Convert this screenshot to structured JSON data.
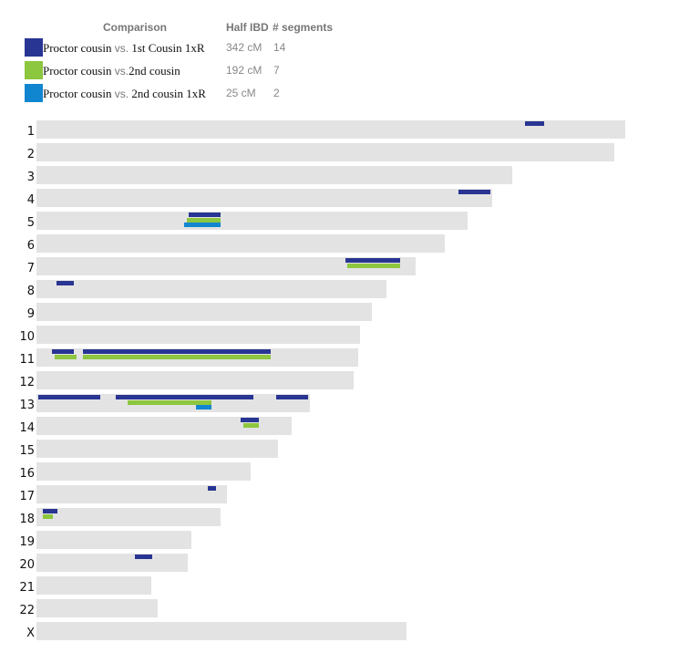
{
  "legend": {
    "headers": {
      "comparison": "Comparison",
      "half_ibd": "Half IBD",
      "segments": "# segments"
    },
    "rows": [
      {
        "name": "Proctor cousin",
        "vs": "vs.",
        "target": "1st Cousin 1xR",
        "half_ibd": "342 cM",
        "segments": "14",
        "color": "#283593"
      },
      {
        "name": "Proctor cousin",
        "vs": "vs.",
        "target": "2nd cousin",
        "half_ibd": "192 cM",
        "segments": "7",
        "color": "#8dc63f"
      },
      {
        "name": "Proctor cousin",
        "vs": "vs.",
        "target": "2nd cousin 1xR",
        "half_ibd": "25 cM",
        "segments": "2",
        "color": "#1186d0"
      }
    ]
  },
  "chart_data": {
    "type": "chromosome-browser",
    "title": "",
    "units": "pixels (x offset from bar start, 40px origin)",
    "series": [
      {
        "name": "Proctor cousin vs. 1st Cousin 1xR",
        "color": "#283593",
        "half_ibd_cM": 342,
        "segments": 14
      },
      {
        "name": "Proctor cousin vs. 2nd cousin",
        "color": "#8dc63f",
        "half_ibd_cM": 192,
        "segments": 7
      },
      {
        "name": "Proctor cousin vs. 2nd cousin 1xR",
        "color": "#1186d0",
        "half_ibd_cM": 25,
        "segments": 2
      }
    ],
    "chromosomes": [
      {
        "label": "1",
        "length": 646,
        "segments": [
          {
            "series": 0,
            "start": 536,
            "end": 557,
            "lane": 0
          }
        ]
      },
      {
        "label": "2",
        "length": 634,
        "segments": []
      },
      {
        "label": "3",
        "length": 522,
        "segments": []
      },
      {
        "label": "4",
        "length": 500,
        "segments": [
          {
            "series": 0,
            "start": 463,
            "end": 498,
            "lane": 0
          }
        ]
      },
      {
        "label": "5",
        "length": 473,
        "segments": [
          {
            "series": 0,
            "start": 167,
            "end": 202,
            "lane": 0
          },
          {
            "series": 1,
            "start": 165,
            "end": 202,
            "lane": 1
          },
          {
            "series": 2,
            "start": 162,
            "end": 202,
            "lane": 2
          }
        ]
      },
      {
        "label": "6",
        "length": 448,
        "segments": []
      },
      {
        "label": "7",
        "length": 416,
        "segments": [
          {
            "series": 0,
            "start": 339,
            "end": 399,
            "lane": 0
          },
          {
            "series": 1,
            "start": 341,
            "end": 399,
            "lane": 1
          }
        ]
      },
      {
        "label": "8",
        "length": 384,
        "segments": [
          {
            "series": 0,
            "start": 22,
            "end": 41,
            "lane": 0
          }
        ]
      },
      {
        "label": "9",
        "length": 368,
        "segments": []
      },
      {
        "label": "10",
        "length": 355,
        "segments": []
      },
      {
        "label": "11",
        "length": 353,
        "segments": [
          {
            "series": 0,
            "start": 17,
            "end": 41,
            "lane": 0
          },
          {
            "series": 1,
            "start": 20,
            "end": 44,
            "lane": 1
          },
          {
            "series": 0,
            "start": 51,
            "end": 257,
            "lane": 0
          },
          {
            "series": 1,
            "start": 51,
            "end": 257,
            "lane": 1
          }
        ]
      },
      {
        "label": "12",
        "length": 348,
        "segments": []
      },
      {
        "label": "13",
        "length": 300,
        "segments": [
          {
            "series": 0,
            "start": 2,
            "end": 70,
            "lane": 0
          },
          {
            "series": 0,
            "start": 87,
            "end": 238,
            "lane": 0
          },
          {
            "series": 0,
            "start": 263,
            "end": 298,
            "lane": 0
          },
          {
            "series": 1,
            "start": 100,
            "end": 192,
            "lane": 1
          },
          {
            "series": 2,
            "start": 175,
            "end": 192,
            "lane": 2
          }
        ]
      },
      {
        "label": "14",
        "length": 280,
        "segments": [
          {
            "series": 0,
            "start": 224,
            "end": 244,
            "lane": 0
          },
          {
            "series": 1,
            "start": 227,
            "end": 244,
            "lane": 1
          }
        ]
      },
      {
        "label": "15",
        "length": 265,
        "segments": []
      },
      {
        "label": "16",
        "length": 235,
        "segments": []
      },
      {
        "label": "17",
        "length": 209,
        "segments": [
          {
            "series": 0,
            "start": 188,
            "end": 197,
            "lane": 0
          }
        ]
      },
      {
        "label": "18",
        "length": 202,
        "segments": [
          {
            "series": 0,
            "start": 7,
            "end": 23,
            "lane": 0
          },
          {
            "series": 1,
            "start": 7,
            "end": 18,
            "lane": 1
          }
        ]
      },
      {
        "label": "19",
        "length": 170,
        "segments": []
      },
      {
        "label": "20",
        "length": 166,
        "segments": [
          {
            "series": 0,
            "start": 108,
            "end": 127,
            "lane": 0
          }
        ]
      },
      {
        "label": "21",
        "length": 126,
        "segments": []
      },
      {
        "label": "22",
        "length": 133,
        "segments": []
      },
      {
        "label": "X",
        "length": 406,
        "segments": []
      }
    ]
  }
}
